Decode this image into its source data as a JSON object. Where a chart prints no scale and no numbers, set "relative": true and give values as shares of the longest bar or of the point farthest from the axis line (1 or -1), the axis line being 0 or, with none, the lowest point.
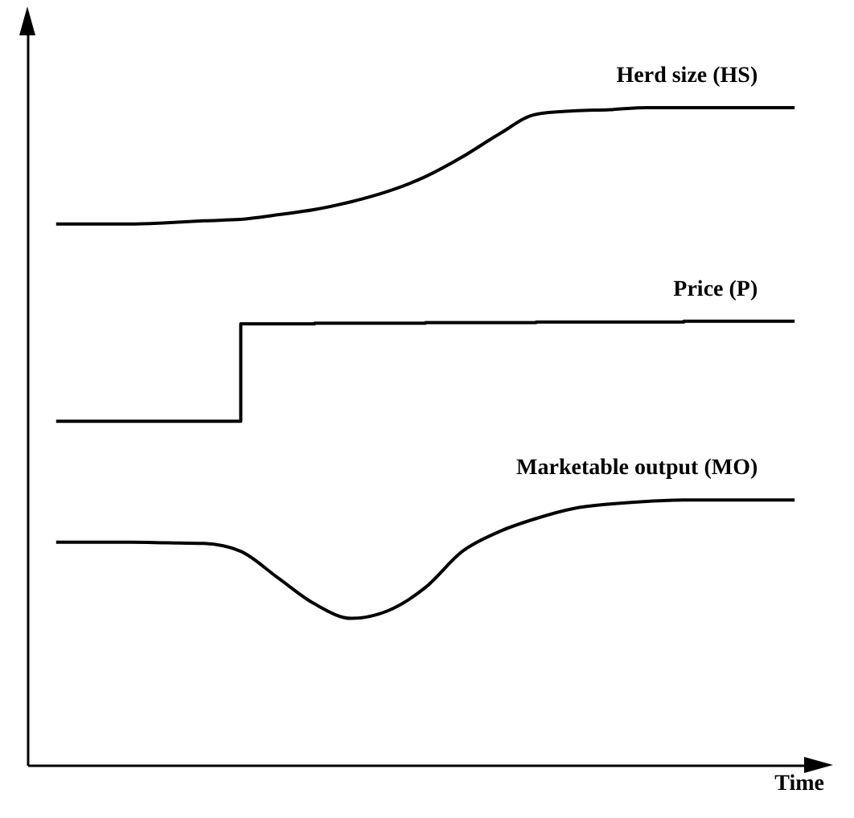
{
  "chart_data": {
    "type": "line",
    "relative": true,
    "xlabel": "Time",
    "line_style": "solid",
    "marker": "none",
    "categories": [
      null,
      null,
      null,
      null,
      null,
      null,
      null,
      null,
      null,
      null,
      null,
      null,
      null,
      null,
      null,
      null,
      null,
      null,
      null,
      null,
      null
    ],
    "series": [
      {
        "name": "Herd size (HS)",
        "color": "#000000",
        "values": [
          0.823,
          0.823,
          0.823,
          0.825,
          0.828,
          0.83,
          0.837,
          0.845,
          0.857,
          0.873,
          0.895,
          0.925,
          0.96,
          0.99,
          0.995,
          0.997,
          1,
          1,
          1,
          1,
          1
        ]
      },
      {
        "name": "Price (P)",
        "type": "step",
        "color": "#000000",
        "values": [
          0.523,
          0.523,
          0.523,
          0.523,
          0.523,
          0.671,
          0.671,
          0.672,
          0.672,
          0.672,
          0.673,
          0.673,
          0.673,
          0.674,
          0.674,
          0.674,
          0.674,
          0.675,
          0.675,
          0.675,
          0.675
        ]
      },
      {
        "name": "Marketable output (MO)",
        "color": "#000000",
        "values": [
          0.339,
          0.339,
          0.339,
          0.338,
          0.337,
          0.325,
          0.285,
          0.245,
          0.223,
          0.235,
          0.27,
          0.325,
          0.355,
          0.375,
          0.39,
          0.397,
          0.401,
          0.403,
          0.403,
          0.403,
          0.403
        ]
      }
    ]
  }
}
